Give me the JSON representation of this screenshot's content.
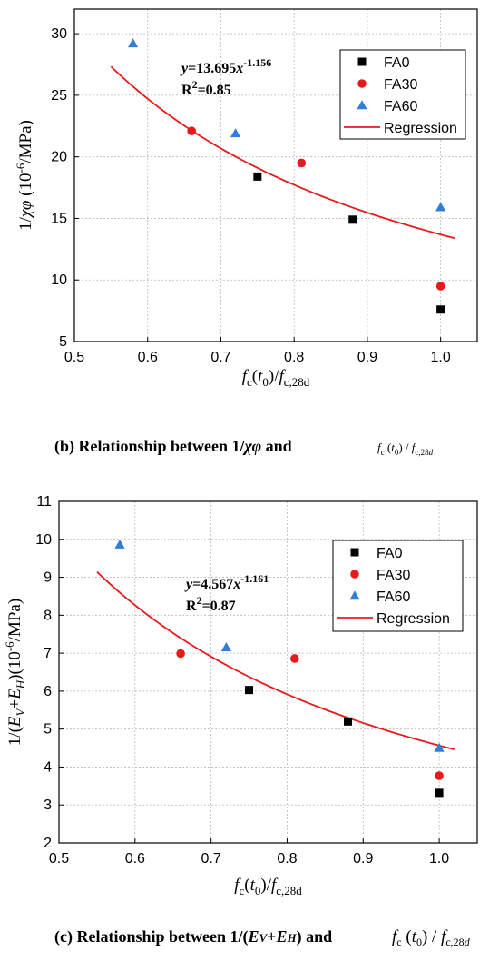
{
  "chart_data": [
    {
      "type": "scatter",
      "panel": "b",
      "xlabel": "f_c(t_0)/f_c,28d",
      "ylabel": "1/χφ (10^-6/MPa)",
      "xlim": [
        0.5,
        1.05
      ],
      "ylim": [
        5,
        32
      ],
      "xticks": [
        "0.5",
        "0.6",
        "0.7",
        "0.8",
        "0.9",
        "1.0"
      ],
      "yticks": [
        "5",
        "10",
        "15",
        "20",
        "25",
        "30"
      ],
      "grid": true,
      "legend_placement": "top-right",
      "series": [
        {
          "name": "FA0",
          "marker": "square",
          "color": "#000000",
          "x": [
            0.75,
            0.88,
            1.0
          ],
          "y": [
            18.4,
            14.9,
            7.6
          ]
        },
        {
          "name": "FA30",
          "marker": "circle",
          "color": "#e8191b",
          "x": [
            0.66,
            0.81,
            1.0
          ],
          "y": [
            22.1,
            19.5,
            9.5
          ]
        },
        {
          "name": "FA60",
          "marker": "triangle",
          "color": "#2f7fd8",
          "x": [
            0.58,
            0.72,
            1.0
          ],
          "y": [
            29.2,
            21.9,
            15.9
          ]
        },
        {
          "name": "Regression",
          "kind": "line",
          "color": "#e8191b",
          "x_range": [
            0.55,
            1.02
          ],
          "coef": 13.695,
          "exp": -1.156
        }
      ],
      "equation": {
        "prefix": "y=13.695x",
        "exp": "-1.156",
        "r2_label": "R",
        "r2_value": "=0.85"
      },
      "caption": {
        "main": "(b) Relationship between 1/χφ and",
        "formula": "f_c(t_0)/f_c,28d"
      }
    },
    {
      "type": "scatter",
      "panel": "c",
      "xlabel": "f_c(t_0)/f_c,28d",
      "ylabel": "1/(E_V+E_H)(10^-6/MPa)",
      "xlim": [
        0.5,
        1.05
      ],
      "ylim": [
        2,
        11
      ],
      "xticks": [
        "0.5",
        "0.6",
        "0.7",
        "0.8",
        "0.9",
        "1.0"
      ],
      "yticks": [
        "2",
        "3",
        "4",
        "5",
        "6",
        "7",
        "8",
        "9",
        "10",
        "11"
      ],
      "grid": true,
      "legend_placement": "top-right",
      "series": [
        {
          "name": "FA0",
          "marker": "square",
          "color": "#000000",
          "x": [
            0.75,
            0.88,
            1.0
          ],
          "y": [
            6.03,
            5.2,
            3.32
          ]
        },
        {
          "name": "FA30",
          "marker": "circle",
          "color": "#e8191b",
          "x": [
            0.66,
            0.81,
            1.0
          ],
          "y": [
            6.99,
            6.86,
            3.77
          ]
        },
        {
          "name": "FA60",
          "marker": "triangle",
          "color": "#2f7fd8",
          "x": [
            0.58,
            0.72,
            1.0
          ],
          "y": [
            9.86,
            7.15,
            4.5
          ]
        },
        {
          "name": "Regression",
          "kind": "line",
          "color": "#e8191b",
          "x_range": [
            0.55,
            1.02
          ],
          "coef": 4.567,
          "exp": -1.161
        }
      ],
      "equation": {
        "prefix": "y=4.567x",
        "exp": "-1.161",
        "r2_label": "R",
        "r2_value": "=0.87"
      },
      "caption": {
        "main": "(c) Relationship between 1/(Ev+EH) and",
        "formula": "f_c(t_0)/f_c,28d"
      }
    }
  ]
}
